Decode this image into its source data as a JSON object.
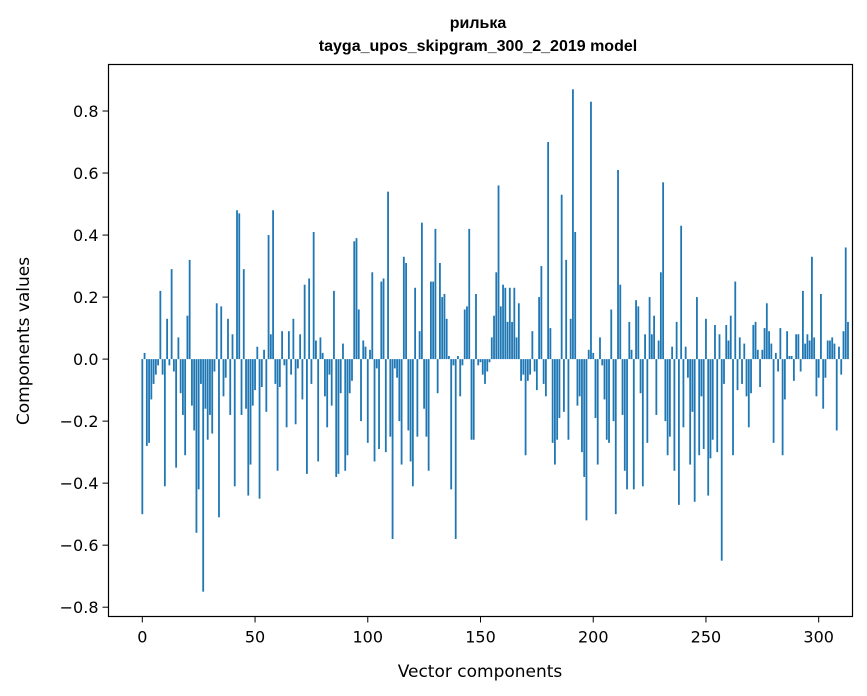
{
  "chart_data": {
    "type": "bar",
    "title_line1": "рилька",
    "title_line2": "tayga_upos_skipgram_300_2_2019 model",
    "xlabel": "Vector components",
    "ylabel": "Components values",
    "xlim": [
      -15,
      315
    ],
    "ylim": [
      -0.83,
      0.95
    ],
    "xticks": [
      0,
      50,
      100,
      150,
      200,
      250,
      300
    ],
    "xtick_labels": [
      "0",
      "50",
      "100",
      "150",
      "200",
      "250",
      "300"
    ],
    "yticks": [
      -0.8,
      -0.6,
      -0.4,
      -0.2,
      0.0,
      0.2,
      0.4,
      0.6,
      0.8
    ],
    "ytick_labels": [
      "−0.8",
      "−0.6",
      "−0.4",
      "−0.2",
      "0.0",
      "0.2",
      "0.4",
      "0.6",
      "0.8"
    ],
    "bar_color": "#1f77b4",
    "values": [
      -0.5,
      0.02,
      -0.28,
      -0.27,
      -0.13,
      -0.08,
      -0.05,
      -0.02,
      0.22,
      -0.05,
      -0.41,
      0.13,
      -0.02,
      0.29,
      -0.04,
      -0.35,
      0.07,
      -0.11,
      -0.18,
      -0.31,
      0.14,
      0.32,
      -0.15,
      -0.23,
      -0.56,
      -0.42,
      -0.08,
      -0.75,
      -0.16,
      -0.26,
      -0.18,
      -0.24,
      -0.04,
      0.18,
      -0.51,
      0.17,
      -0.12,
      -0.06,
      0.13,
      -0.18,
      0.08,
      -0.41,
      0.48,
      0.47,
      -0.18,
      0.29,
      -0.16,
      -0.44,
      -0.34,
      -0.15,
      -0.1,
      0.04,
      -0.45,
      -0.09,
      0.03,
      -0.17,
      0.4,
      0.08,
      0.48,
      -0.08,
      -0.36,
      -0.09,
      0.09,
      -0.02,
      -0.22,
      0.09,
      -0.05,
      0.13,
      -0.21,
      -0.03,
      0.08,
      -0.13,
      0.24,
      -0.37,
      0.26,
      -0.08,
      0.41,
      0.06,
      -0.33,
      0.07,
      0.02,
      -0.12,
      -0.22,
      -0.05,
      -0.15,
      0.22,
      -0.38,
      -0.37,
      -0.11,
      0.05,
      -0.36,
      -0.31,
      -0.11,
      -0.07,
      0.38,
      0.39,
      0.16,
      -0.2,
      0.06,
      0.04,
      -0.27,
      0.03,
      0.28,
      -0.33,
      -0.03,
      -0.29,
      0.25,
      0.26,
      -0.3,
      0.54,
      -0.25,
      -0.58,
      -0.03,
      -0.06,
      -0.2,
      -0.34,
      0.33,
      0.31,
      -0.23,
      -0.33,
      -0.41,
      0.23,
      -0.25,
      0.09,
      0.44,
      -0.16,
      -0.25,
      -0.36,
      0.25,
      0.25,
      0.42,
      -0.11,
      0.31,
      0.2,
      0.21,
      0.13,
      0.01,
      -0.42,
      -0.02,
      -0.58,
      0.01,
      -0.12,
      -0.02,
      0.16,
      0.17,
      0.42,
      -0.26,
      -0.26,
      0.21,
      -0.02,
      -0.01,
      -0.05,
      -0.08,
      -0.04,
      -0.01,
      0.07,
      0.14,
      0.28,
      0.56,
      0.17,
      0.24,
      0.23,
      0.12,
      0.23,
      0.12,
      0.23,
      0.07,
      0.18,
      -0.07,
      -0.05,
      -0.31,
      -0.07,
      -0.05,
      0.09,
      -0.04,
      -0.1,
      0.2,
      0.3,
      -0.08,
      -0.12,
      0.7,
      0.1,
      -0.27,
      -0.34,
      -0.26,
      -0.19,
      0.53,
      -0.17,
      0.32,
      -0.26,
      0.13,
      0.87,
      0.41,
      -0.15,
      -0.12,
      -0.3,
      -0.38,
      -0.52,
      0.03,
      0.83,
      0.02,
      -0.19,
      -0.34,
      0.07,
      -0.02,
      -0.13,
      -0.26,
      -0.27,
      0.16,
      -0.2,
      -0.5,
      0.61,
      0.24,
      -0.18,
      -0.36,
      -0.42,
      0.12,
      0.03,
      -0.42,
      0.19,
      0.17,
      -0.11,
      -0.41,
      0.08,
      -0.27,
      0.2,
      0.08,
      0.14,
      -0.18,
      0.06,
      0.28,
      0.57,
      -0.2,
      -0.31,
      -0.25,
      0.04,
      -0.36,
      0.12,
      -0.47,
      0.43,
      -0.22,
      0.04,
      -0.06,
      -0.34,
      -0.17,
      -0.46,
      0.2,
      -0.31,
      -0.12,
      -0.29,
      0.13,
      -0.44,
      -0.32,
      -0.26,
      0.11,
      -0.3,
      0.08,
      -0.65,
      -0.08,
      0.11,
      0.06,
      0.14,
      -0.31,
      0.25,
      -0.1,
      0.07,
      -0.08,
      0.05,
      -0.12,
      -0.22,
      -0.11,
      0.11,
      0.12,
      0.03,
      -0.09,
      0.03,
      0.1,
      0.18,
      0.09,
      0.05,
      -0.27,
      0.02,
      -0.04,
      0.1,
      -0.31,
      -0.13,
      0.09,
      0.01,
      0.01,
      -0.07,
      0.08,
      0.08,
      -0.04,
      0.22,
      0.05,
      0.08,
      0.06,
      0.33,
      0.07,
      -0.12,
      -0.06,
      0.21,
      -0.16,
      -0.06,
      0.06,
      0.06,
      0.07,
      0.05,
      -0.23,
      0.04,
      -0.05,
      0.09,
      0.36,
      0.12
    ]
  }
}
